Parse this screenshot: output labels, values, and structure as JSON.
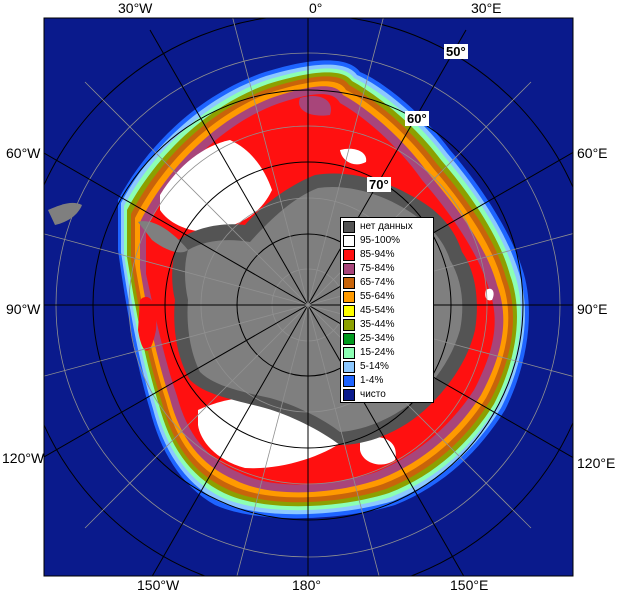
{
  "map": {
    "longitude_labels": {
      "w30": "30°W",
      "zero": "0°",
      "e30": "30°E",
      "w60": "60°W",
      "e60": "60°E",
      "w90": "90°W",
      "e90": "90°E",
      "w120": "120°W",
      "e120": "120°E",
      "w150": "150°W",
      "d180": "180°",
      "e150": "150°E"
    },
    "latitude_labels": {
      "l50": "50°",
      "l60": "60°",
      "l70": "70°"
    },
    "colors": {
      "ocean": "#0a1a8c",
      "land": "#7f7f7f",
      "no_data": "#545454",
      "ice_95_100": "#ffffff",
      "ice_85_94": "#ff1010",
      "ice_75_84": "#a8457a",
      "ice_65_74": "#c8640a",
      "ice_55_64": "#ff9a00",
      "ice_45_54": "#ffff00",
      "ice_35_44": "#8ca000",
      "ice_25_34": "#009a1e",
      "ice_15_24": "#8cffb4",
      "ice_5_14": "#8cc8ff",
      "ice_1_4": "#1e64ff",
      "clear": "#0a1a8c"
    }
  },
  "legend": {
    "items": [
      {
        "label": "нет данных",
        "color": "#545454"
      },
      {
        "label": "95-100%",
        "color": "#ffffff"
      },
      {
        "label": "85-94%",
        "color": "#ff1010"
      },
      {
        "label": "75-84%",
        "color": "#a8457a"
      },
      {
        "label": "65-74%",
        "color": "#c8640a"
      },
      {
        "label": "55-64%",
        "color": "#ff9a00"
      },
      {
        "label": "45-54%",
        "color": "#ffff00"
      },
      {
        "label": "35-44%",
        "color": "#8ca000"
      },
      {
        "label": "25-34%",
        "color": "#009a1e"
      },
      {
        "label": "15-24%",
        "color": "#8cffb4"
      },
      {
        "label": "5-14%",
        "color": "#8cc8ff"
      },
      {
        "label": "1-4%",
        "color": "#1e64ff"
      },
      {
        "label": "чисто",
        "color": "#0a1a8c"
      }
    ]
  }
}
